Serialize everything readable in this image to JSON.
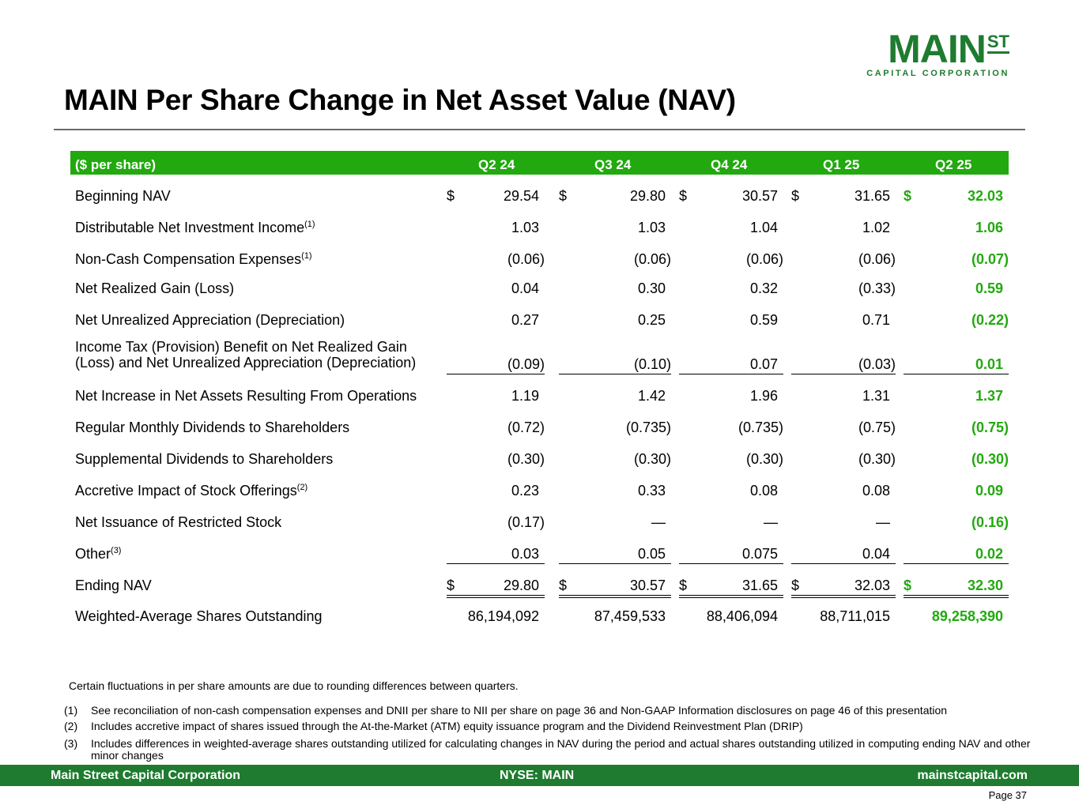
{
  "logo": {
    "main": "MAIN",
    "st": "ST",
    "sub": "CAPITAL CORPORATION"
  },
  "title": "MAIN Per Share Change in Net Asset Value (NAV)",
  "table": {
    "header_label": "($ per share)",
    "quarters": [
      "Q2 24",
      "Q3 24",
      "Q4 24",
      "Q1 25",
      "Q2 25"
    ],
    "rows": [
      {
        "label": "Beginning NAV",
        "values": [
          "29.54",
          "29.80",
          "30.57",
          "31.65",
          "32.03"
        ],
        "dollar": "$"
      },
      {
        "label": "Distributable Net Investment Income",
        "sup": "(1)",
        "values": [
          "1.03",
          "1.03",
          "1.04",
          "1.02",
          "1.06"
        ]
      },
      {
        "label": "Non-Cash Compensation Expenses",
        "sup": "(1)",
        "values": [
          "(0.06)",
          "(0.06)",
          "(0.06)",
          "(0.06)",
          "(0.07)"
        ]
      },
      {
        "label": "Net Realized Gain (Loss)",
        "values": [
          "0.04",
          "0.30",
          "0.32",
          "(0.33)",
          "0.59"
        ]
      },
      {
        "label": "Net Unrealized Appreciation (Depreciation)",
        "values": [
          "0.27",
          "0.25",
          "0.59",
          "0.71",
          "(0.22)"
        ]
      },
      {
        "label_line1": "Income Tax (Provision) Benefit on Net Realized Gain",
        "label_line2": "(Loss) and Net Unrealized Appreciation (Depreciation)",
        "values": [
          "(0.09)",
          "(0.10)",
          "0.07",
          "(0.03)",
          "0.01"
        ]
      },
      {
        "label": "Net Increase in Net Assets Resulting From Operations",
        "values": [
          "1.19",
          "1.42",
          "1.96",
          "1.31",
          "1.37"
        ]
      },
      {
        "label": "Regular Monthly Dividends to Shareholders",
        "values": [
          "(0.72)",
          "(0.735)",
          "(0.735)",
          "(0.75)",
          "(0.75)"
        ]
      },
      {
        "label": "Supplemental Dividends to Shareholders",
        "values": [
          "(0.30)",
          "(0.30)",
          "(0.30)",
          "(0.30)",
          "(0.30)"
        ]
      },
      {
        "label": "Accretive Impact of Stock Offerings",
        "sup": "(2)",
        "values": [
          "0.23",
          "0.33",
          "0.08",
          "0.08",
          "0.09"
        ]
      },
      {
        "label": "Net Issuance of Restricted Stock",
        "values": [
          "(0.17)",
          "—",
          "—",
          "—",
          "(0.16)"
        ]
      },
      {
        "label": "Other",
        "sup": "(3)",
        "values": [
          "0.03",
          "0.05",
          "0.075",
          "0.04",
          "0.02"
        ]
      },
      {
        "label": "Ending NAV",
        "values": [
          "29.80",
          "30.57",
          "31.65",
          "32.03",
          "32.30"
        ],
        "dollar": "$"
      },
      {
        "label": "Weighted-Average Shares Outstanding",
        "values": [
          "86,194,092",
          "87,459,533",
          "88,406,094",
          "88,711,015",
          "89,258,390"
        ]
      }
    ]
  },
  "notes": {
    "rounding": "Certain fluctuations in per share amounts are due to rounding differences between quarters.",
    "footnotes": [
      {
        "num": "(1)",
        "text": "See reconciliation of non-cash compensation expenses and DNII per share to NII per share on page 36 and Non-GAAP Information disclosures on page 46 of this presentation"
      },
      {
        "num": "(2)",
        "text": "Includes accretive impact of shares issued through the At-the-Market (ATM) equity issuance program and the Dividend Reinvestment Plan (DRIP)"
      },
      {
        "num": "(3)",
        "text": "Includes differences in weighted-average shares outstanding utilized for calculating changes in NAV during the period and actual shares outstanding utilized in computing ending NAV and other minor changes"
      }
    ]
  },
  "footer": {
    "left": "Main Street Capital Corporation",
    "center": "NYSE: MAIN",
    "right": "mainstcapital.com"
  },
  "page": "Page  37",
  "colors": {
    "brand_green": "#1e7b2f",
    "accent_green": "#22a90f"
  }
}
